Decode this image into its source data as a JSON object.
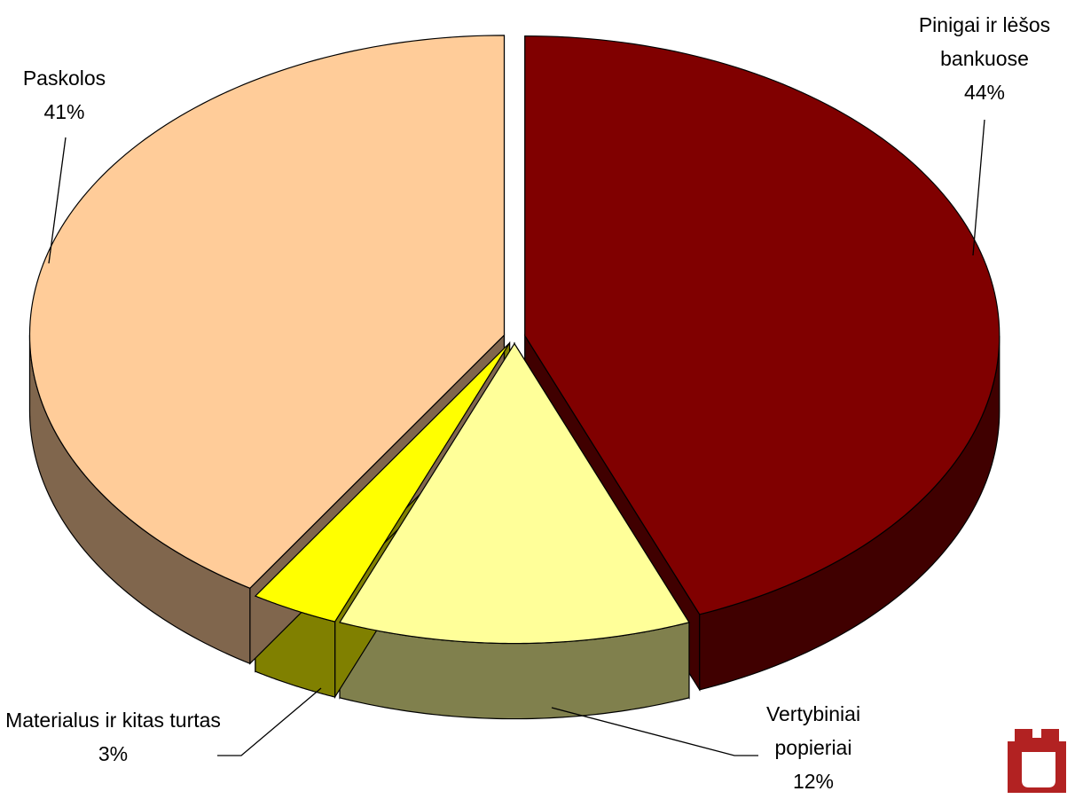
{
  "chart_data": {
    "type": "pie",
    "categories": [
      "Pinigai ir lėšos bankuose",
      "Vertybiniai popieriai",
      "Materialus ir kitas turtas",
      "Paskolos"
    ],
    "values": [
      44,
      12,
      3,
      41
    ],
    "value_labels": [
      "44%",
      "12%",
      "3%",
      "41%"
    ],
    "colors": [
      "#800000",
      "#ffff99",
      "#ffff00",
      "#ffcc99"
    ]
  }
}
